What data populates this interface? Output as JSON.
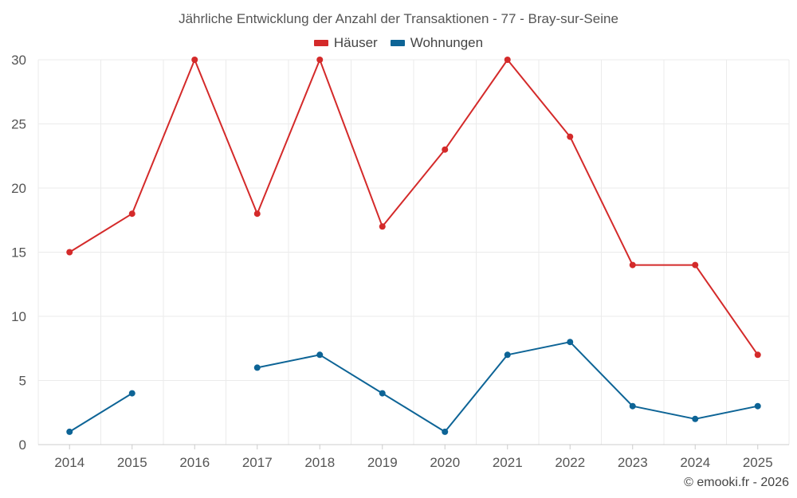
{
  "chart_data": {
    "type": "line",
    "title": "Jährliche Entwicklung der Anzahl der Transaktionen - 77 - Bray-sur-Seine",
    "categories": [
      "2014",
      "2015",
      "2016",
      "2017",
      "2018",
      "2019",
      "2020",
      "2021",
      "2022",
      "2023",
      "2024",
      "2025"
    ],
    "series": [
      {
        "name": "Häuser",
        "color": "#d42a2a",
        "values": [
          15,
          18,
          30,
          18,
          30,
          17,
          23,
          30,
          24,
          14,
          14,
          7
        ]
      },
      {
        "name": "Wohnungen",
        "color": "#0d6496",
        "values": [
          1,
          4,
          null,
          6,
          7,
          4,
          1,
          7,
          8,
          3,
          2,
          3
        ]
      }
    ],
    "ylim": [
      0,
      30
    ],
    "yticks": [
      0,
      5,
      10,
      15,
      20,
      25,
      30
    ],
    "grid": true,
    "legend_position": "top-center"
  },
  "credit": "© emooki.fr - 2026"
}
